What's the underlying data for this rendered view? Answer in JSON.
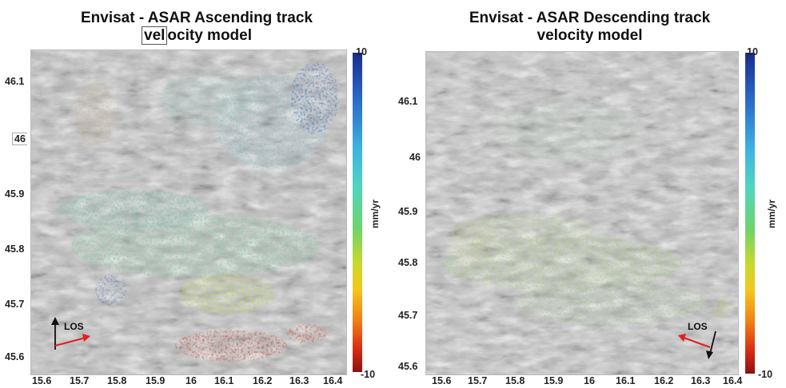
{
  "panels": [
    {
      "title_line1": "Envisat - ASAR Ascending track",
      "title_line2_boxed": "vel",
      "title_line2_rest": "ocity model",
      "y_ticks": [
        "46.1",
        "46",
        "45.9",
        "45.8",
        "45.7",
        "45.6"
      ],
      "x_ticks": [
        "15.6",
        "15.7",
        "15.8",
        "15.9",
        "16",
        "16.1",
        "16.2",
        "16.3",
        "16.4"
      ],
      "colorbar": {
        "max": "10",
        "min": "-10",
        "unit": "mm/yr"
      },
      "los_label": "LOS"
    },
    {
      "title_line1": "Envisat - ASAR Descending track",
      "title_line2": "velocity model",
      "y_ticks": [
        "46.1",
        "46",
        "45.9",
        "45.8",
        "45.7",
        "45.6"
      ],
      "x_ticks": [
        "15.6",
        "15.7",
        "15.8",
        "15.9",
        "16",
        "16.1",
        "16.2",
        "16.3",
        "16.4"
      ],
      "colorbar": {
        "max": "10",
        "min": "-10",
        "unit": "mm/yr"
      },
      "los_label": "LOS"
    }
  ],
  "colors": {
    "velocity_high": "#1a2c8a",
    "velocity_mid": "#6fd36a",
    "velocity_low": "#8b1212",
    "arrow_los": "#e02020"
  }
}
